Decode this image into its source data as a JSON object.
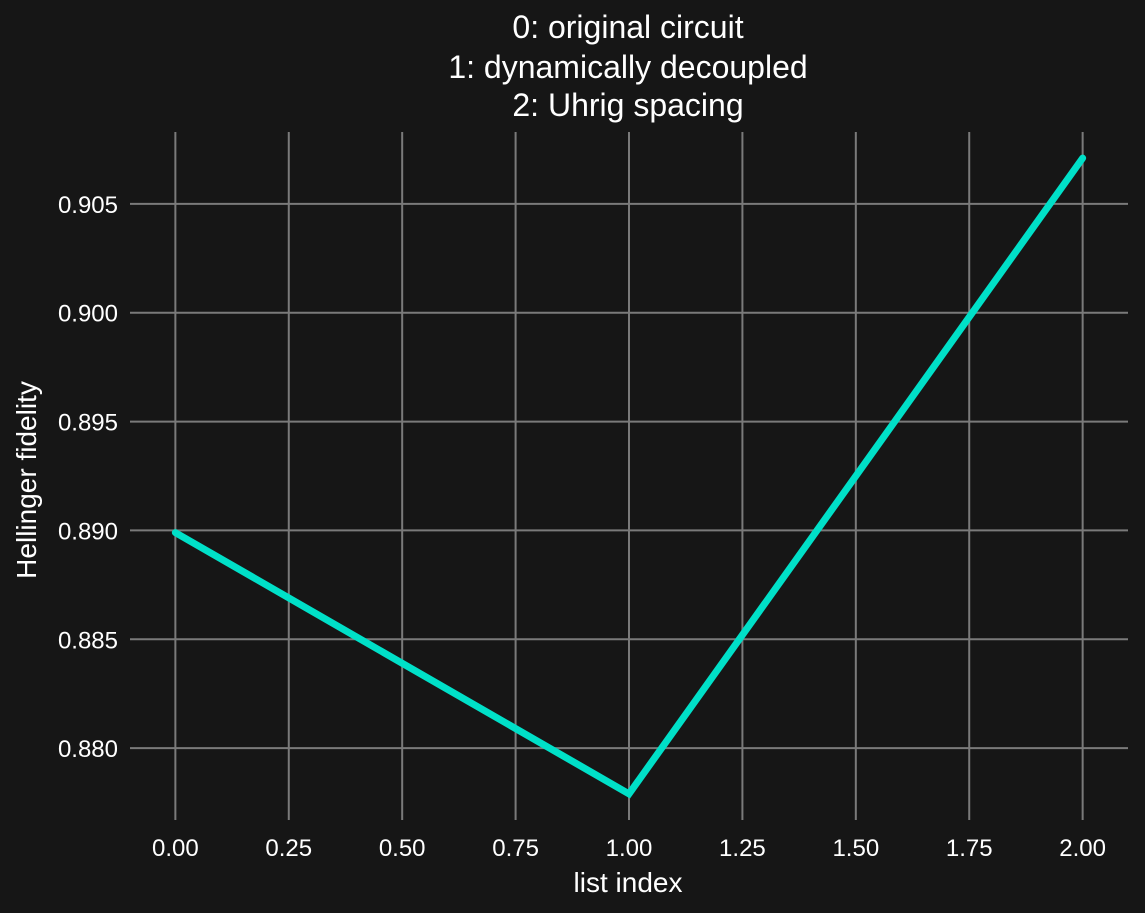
{
  "colors": {
    "background": "#161616",
    "grid": "#7a7a7a",
    "text": "#ffffff",
    "series": "#00e0c8"
  },
  "chart_data": {
    "type": "line",
    "title_lines": [
      "0: original circuit",
      "1: dynamically decoupled",
      "2: Uhrig spacing"
    ],
    "xlabel": "list index",
    "ylabel": "Hellinger fidelity",
    "grid": true,
    "xlim": [
      -0.1,
      2.1
    ],
    "ylim": [
      0.8767,
      0.9083
    ],
    "x_ticks": [
      0.0,
      0.25,
      0.5,
      0.75,
      1.0,
      1.25,
      1.5,
      1.75,
      2.0
    ],
    "x_tick_labels": [
      "0.00",
      "0.25",
      "0.50",
      "0.75",
      "1.00",
      "1.25",
      "1.50",
      "1.75",
      "2.00"
    ],
    "y_ticks": [
      0.88,
      0.885,
      0.89,
      0.895,
      0.9,
      0.905
    ],
    "y_tick_labels": [
      "0.880",
      "0.885",
      "0.890",
      "0.895",
      "0.900",
      "0.905"
    ],
    "series": [
      {
        "x": [
          0,
          1,
          2
        ],
        "y": [
          0.8899,
          0.8779,
          0.9071
        ]
      }
    ]
  }
}
